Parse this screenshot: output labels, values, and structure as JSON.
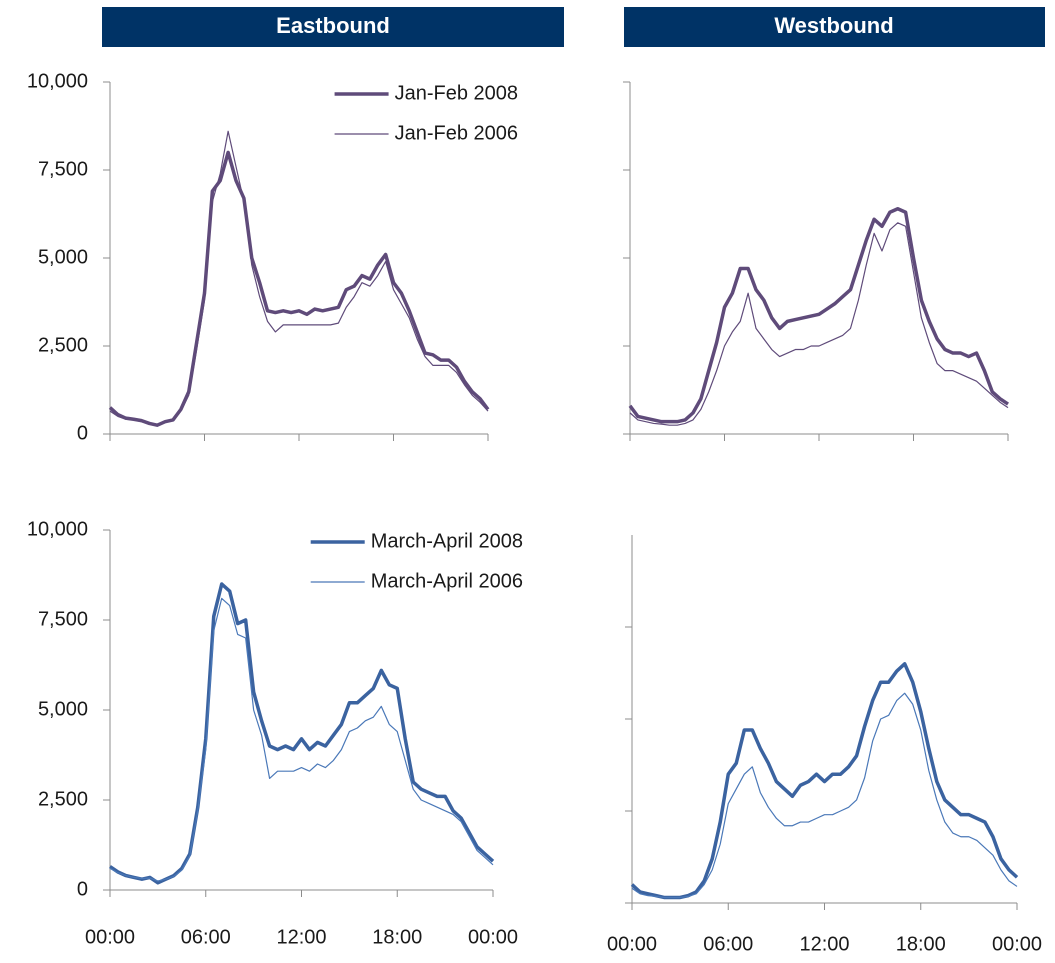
{
  "headers": [
    "Eastbound",
    "Westbound"
  ],
  "chart_data": [
    {
      "type": "line",
      "legend": "upper right",
      "xtick_labels": false,
      "ytick_labels": true,
      "x": [
        0,
        0.5,
        1,
        1.5,
        2,
        2.5,
        3,
        3.5,
        4,
        4.5,
        5,
        5.5,
        6,
        6.5,
        7,
        7.5,
        8,
        8.5,
        9,
        9.5,
        10,
        10.5,
        11,
        11.5,
        12,
        12.5,
        13,
        13.5,
        14,
        14.5,
        15,
        15.5,
        16,
        16.5,
        17,
        17.5,
        18,
        18.5,
        19,
        19.5,
        20,
        20.5,
        21,
        21.5,
        22,
        22.5,
        23,
        23.5,
        24
      ],
      "xlim": [
        0,
        24
      ],
      "xticks": [
        0,
        6,
        12,
        18,
        24
      ],
      "ylim": [
        0,
        10000
      ],
      "yticks": [
        0,
        {
          "value": 2500,
          "label": "2,500"
        },
        {
          "value": 5000,
          "label": "5,000"
        },
        {
          "value": 7500,
          "label": "7,500"
        },
        {
          "value": 10000,
          "label": "10,000"
        }
      ],
      "series": [
        {
          "name": "Jan-Feb 2008",
          "color": "#5f4b7a",
          "width": 3.5,
          "values": [
            750,
            550,
            450,
            420,
            380,
            300,
            250,
            350,
            400,
            700,
            1200,
            2600,
            4000,
            6900,
            7200,
            8000,
            7200,
            6700,
            5000,
            4300,
            3500,
            3450,
            3500,
            3450,
            3500,
            3400,
            3550,
            3500,
            3550,
            3600,
            4100,
            4200,
            4500,
            4400,
            4800,
            5100,
            4300,
            4000,
            3500,
            2900,
            2300,
            2250,
            2100,
            2100,
            1900,
            1500,
            1200,
            1000,
            700
          ]
        },
        {
          "name": "Jan-Feb 2006",
          "color": "#5f4b7a",
          "width": 1.2,
          "values": [
            650,
            500,
            420,
            400,
            350,
            280,
            230,
            330,
            380,
            650,
            1100,
            2400,
            3800,
            6600,
            7400,
            8600,
            7600,
            6600,
            4800,
            3900,
            3200,
            2900,
            3100,
            3100,
            3100,
            3100,
            3100,
            3100,
            3100,
            3150,
            3600,
            3900,
            4300,
            4200,
            4500,
            4900,
            4100,
            3700,
            3300,
            2700,
            2200,
            1950,
            1950,
            1950,
            1750,
            1400,
            1100,
            900,
            650
          ]
        }
      ]
    },
    {
      "type": "line",
      "xtick_labels": false,
      "ytick_labels": false,
      "x": [
        0,
        0.5,
        1,
        1.5,
        2,
        2.5,
        3,
        3.5,
        4,
        4.5,
        5,
        5.5,
        6,
        6.5,
        7,
        7.5,
        8,
        8.5,
        9,
        9.5,
        10,
        10.5,
        11,
        11.5,
        12,
        12.5,
        13,
        13.5,
        14,
        14.5,
        15,
        15.5,
        16,
        16.5,
        17,
        17.5,
        18,
        18.5,
        19,
        19.5,
        20,
        20.5,
        21,
        21.5,
        22,
        22.5,
        23,
        23.5,
        24
      ],
      "xlim": [
        0,
        24
      ],
      "xticks": [
        0,
        6,
        12,
        18,
        24
      ],
      "ylim": [
        0,
        10000
      ],
      "yticks": [
        0,
        2500,
        5000,
        7500,
        10000
      ],
      "series": [
        {
          "color": "#5f4b7a",
          "width": 3.5,
          "values": [
            800,
            500,
            450,
            400,
            350,
            350,
            350,
            400,
            600,
            1000,
            1800,
            2600,
            3600,
            4000,
            4700,
            4700,
            4100,
            3800,
            3300,
            3000,
            3200,
            3250,
            3300,
            3350,
            3400,
            3550,
            3700,
            3900,
            4100,
            4800,
            5500,
            6100,
            5900,
            6300,
            6400,
            6300,
            5000,
            3800,
            3200,
            2700,
            2400,
            2300,
            2300,
            2200,
            2300,
            1800,
            1200,
            1000,
            850
          ]
        },
        {
          "color": "#5f4b7a",
          "width": 1.2,
          "values": [
            600,
            400,
            350,
            300,
            280,
            250,
            250,
            300,
            400,
            700,
            1200,
            1800,
            2500,
            2900,
            3200,
            4000,
            3000,
            2700,
            2400,
            2200,
            2300,
            2400,
            2400,
            2500,
            2500,
            2600,
            2700,
            2800,
            3000,
            3800,
            4800,
            5700,
            5200,
            5800,
            6000,
            5900,
            4600,
            3300,
            2600,
            2000,
            1800,
            1800,
            1700,
            1600,
            1500,
            1300,
            1100,
            900,
            750
          ]
        }
      ]
    },
    {
      "type": "line",
      "legend": "upper right",
      "xtick_labels": true,
      "ytick_labels": true,
      "x": [
        0,
        0.5,
        1,
        1.5,
        2,
        2.5,
        3,
        3.5,
        4,
        4.5,
        5,
        5.5,
        6,
        6.5,
        7,
        7.5,
        8,
        8.5,
        9,
        9.5,
        10,
        10.5,
        11,
        11.5,
        12,
        12.5,
        13,
        13.5,
        14,
        14.5,
        15,
        15.5,
        16,
        16.5,
        17,
        17.5,
        18,
        18.5,
        19,
        19.5,
        20,
        20.5,
        21,
        21.5,
        22,
        22.5,
        23,
        23.5,
        24
      ],
      "xlim": [
        0,
        24
      ],
      "xticks": [
        {
          "value": 0,
          "label": "00:00"
        },
        {
          "value": 6,
          "label": "06:00"
        },
        {
          "value": 12,
          "label": "12:00"
        },
        {
          "value": 18,
          "label": "18:00"
        },
        {
          "value": 24,
          "label": "00:00"
        }
      ],
      "ylim": [
        0,
        10000
      ],
      "yticks": [
        0,
        {
          "value": 2500,
          "label": "2,500"
        },
        {
          "value": 5000,
          "label": "5,000"
        },
        {
          "value": 7500,
          "label": "7,500"
        },
        {
          "value": 10000,
          "label": "10,000"
        }
      ],
      "series": [
        {
          "name": "March-April 2008",
          "color": "#3b63a0",
          "width": 3.5,
          "values": [
            650,
            500,
            400,
            350,
            300,
            350,
            200,
            300,
            400,
            600,
            1000,
            2300,
            4200,
            7600,
            8500,
            8300,
            7400,
            7500,
            5500,
            4700,
            4000,
            3900,
            4000,
            3900,
            4200,
            3900,
            4100,
            4000,
            4300,
            4600,
            5200,
            5200,
            5400,
            5600,
            6100,
            5700,
            5600,
            4200,
            3000,
            2800,
            2700,
            2600,
            2600,
            2200,
            2000,
            1600,
            1200,
            1000,
            800
          ]
        },
        {
          "name": "March-April 2006",
          "color": "#4a78b8",
          "width": 1.2,
          "values": [
            600,
            480,
            400,
            350,
            320,
            330,
            250,
            300,
            380,
            550,
            950,
            2200,
            3900,
            7200,
            8100,
            7900,
            7100,
            7000,
            5000,
            4300,
            3100,
            3300,
            3300,
            3300,
            3400,
            3300,
            3500,
            3400,
            3600,
            3900,
            4400,
            4500,
            4700,
            4800,
            5100,
            4600,
            4400,
            3600,
            2800,
            2500,
            2400,
            2300,
            2200,
            2100,
            1900,
            1500,
            1100,
            900,
            700
          ]
        }
      ]
    },
    {
      "type": "line",
      "xtick_labels": true,
      "ytick_labels": false,
      "x": [
        0,
        0.5,
        1,
        1.5,
        2,
        2.5,
        3,
        3.5,
        4,
        4.5,
        5,
        5.5,
        6,
        6.5,
        7,
        7.5,
        8,
        8.5,
        9,
        9.5,
        10,
        10.5,
        11,
        11.5,
        12,
        12.5,
        13,
        13.5,
        14,
        14.5,
        15,
        15.5,
        16,
        16.5,
        17,
        17.5,
        18,
        18.5,
        19,
        19.5,
        20,
        20.5,
        21,
        21.5,
        22,
        22.5,
        23,
        23.5,
        24
      ],
      "xlim": [
        0,
        24
      ],
      "xticks": [
        {
          "value": 0,
          "label": "00:00"
        },
        {
          "value": 6,
          "label": "06:00"
        },
        {
          "value": 12,
          "label": "12:00"
        },
        {
          "value": 18,
          "label": "18:00"
        },
        {
          "value": 24,
          "label": "00:00"
        }
      ],
      "ylim": [
        0,
        10000
      ],
      "yticks": [
        0,
        2500,
        5000,
        7500
      ],
      "series": [
        {
          "color": "#3b63a0",
          "width": 3.5,
          "values": [
            500,
            300,
            250,
            200,
            150,
            150,
            150,
            200,
            300,
            600,
            1200,
            2200,
            3500,
            3800,
            4700,
            4700,
            4200,
            3800,
            3300,
            3100,
            2900,
            3200,
            3300,
            3500,
            3300,
            3500,
            3500,
            3700,
            4000,
            4800,
            5500,
            6000,
            6000,
            6300,
            6500,
            6000,
            5200,
            4200,
            3300,
            2800,
            2600,
            2400,
            2400,
            2300,
            2200,
            1800,
            1200,
            900,
            700
          ]
        },
        {
          "color": "#4a78b8",
          "width": 1.2,
          "values": [
            400,
            250,
            200,
            180,
            150,
            150,
            150,
            180,
            250,
            500,
            900,
            1600,
            2700,
            3100,
            3500,
            3700,
            3000,
            2600,
            2300,
            2100,
            2100,
            2200,
            2200,
            2300,
            2400,
            2400,
            2500,
            2600,
            2800,
            3400,
            4400,
            5000,
            5100,
            5500,
            5700,
            5400,
            4700,
            3600,
            2800,
            2200,
            1900,
            1800,
            1800,
            1700,
            1500,
            1300,
            900,
            600,
            450
          ]
        }
      ]
    }
  ]
}
